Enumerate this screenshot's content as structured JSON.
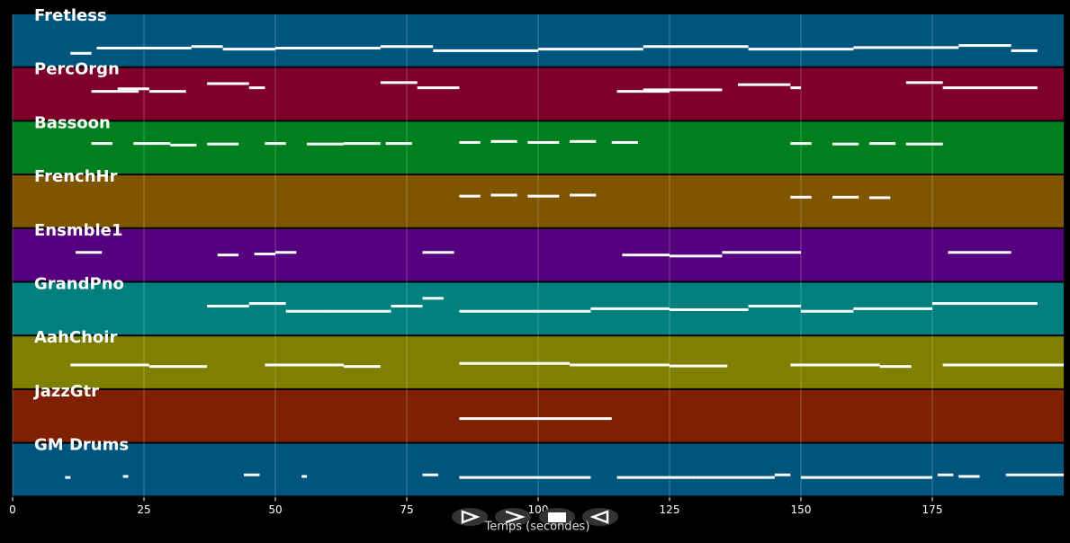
{
  "chart_data": {
    "type": "pianoroll",
    "xlabel": "Temps (secondes)",
    "xlim": [
      0,
      200
    ],
    "xticks": [
      0,
      25,
      50,
      75,
      100,
      125,
      150,
      175
    ],
    "grid": true,
    "tracks": [
      {
        "name": "Fretless",
        "color": "#00557f",
        "notes": [
          [
            11,
            15,
            0.25
          ],
          [
            16,
            34,
            0.35
          ],
          [
            34,
            40,
            0.38
          ],
          [
            40,
            50,
            0.33
          ],
          [
            50,
            70,
            0.35
          ],
          [
            70,
            80,
            0.38
          ],
          [
            80,
            100,
            0.3
          ],
          [
            100,
            120,
            0.33
          ],
          [
            120,
            140,
            0.38
          ],
          [
            140,
            160,
            0.33
          ],
          [
            160,
            180,
            0.36
          ],
          [
            180,
            190,
            0.4
          ],
          [
            190,
            195,
            0.3
          ]
        ]
      },
      {
        "name": "PercOrgn",
        "color": "#7f0028",
        "notes": [
          [
            15,
            24,
            0.55
          ],
          [
            20,
            26,
            0.6
          ],
          [
            26,
            33,
            0.55
          ],
          [
            37,
            45,
            0.7
          ],
          [
            45,
            48,
            0.62
          ],
          [
            70,
            77,
            0.72
          ],
          [
            77,
            85,
            0.62
          ],
          [
            115,
            125,
            0.55
          ],
          [
            120,
            135,
            0.58
          ],
          [
            138,
            148,
            0.68
          ],
          [
            148,
            150,
            0.62
          ],
          [
            170,
            177,
            0.72
          ],
          [
            177,
            195,
            0.62
          ]
        ]
      },
      {
        "name": "Bassoon",
        "color": "#007f1f",
        "notes": [
          [
            15,
            19,
            0.58
          ],
          [
            23,
            30,
            0.58
          ],
          [
            30,
            35,
            0.55
          ],
          [
            37,
            43,
            0.57
          ],
          [
            48,
            52,
            0.58
          ],
          [
            56,
            63,
            0.57
          ],
          [
            63,
            70,
            0.58
          ],
          [
            71,
            76,
            0.58
          ],
          [
            85,
            89,
            0.6
          ],
          [
            91,
            96,
            0.62
          ],
          [
            98,
            104,
            0.6
          ],
          [
            106,
            111,
            0.62
          ],
          [
            114,
            119,
            0.6
          ],
          [
            148,
            152,
            0.58
          ],
          [
            156,
            161,
            0.57
          ],
          [
            163,
            168,
            0.58
          ],
          [
            170,
            177,
            0.57
          ]
        ]
      },
      {
        "name": "FrenchHr",
        "color": "#7f5500",
        "notes": [
          [
            85,
            89,
            0.6
          ],
          [
            91,
            96,
            0.62
          ],
          [
            98,
            104,
            0.6
          ],
          [
            106,
            111,
            0.62
          ],
          [
            148,
            152,
            0.58
          ],
          [
            156,
            161,
            0.58
          ],
          [
            163,
            167,
            0.57
          ]
        ]
      },
      {
        "name": "Ensmble1",
        "color": "#55007f",
        "notes": [
          [
            12,
            17,
            0.55
          ],
          [
            39,
            43,
            0.5
          ],
          [
            46,
            50,
            0.52
          ],
          [
            50,
            54,
            0.55
          ],
          [
            78,
            84,
            0.55
          ],
          [
            116,
            125,
            0.5
          ],
          [
            125,
            135,
            0.48
          ],
          [
            135,
            150,
            0.55
          ],
          [
            178,
            190,
            0.55
          ]
        ]
      },
      {
        "name": "GrandPno",
        "color": "#007f7f",
        "notes": [
          [
            37,
            45,
            0.55
          ],
          [
            45,
            52,
            0.6
          ],
          [
            52,
            60,
            0.45
          ],
          [
            60,
            72,
            0.45
          ],
          [
            72,
            78,
            0.55
          ],
          [
            78,
            82,
            0.7
          ],
          [
            85,
            100,
            0.45
          ],
          [
            100,
            110,
            0.45
          ],
          [
            110,
            125,
            0.5
          ],
          [
            125,
            140,
            0.48
          ],
          [
            140,
            150,
            0.55
          ],
          [
            150,
            160,
            0.45
          ],
          [
            160,
            175,
            0.5
          ],
          [
            175,
            195,
            0.6
          ]
        ]
      },
      {
        "name": "AahChoir",
        "color": "#7f7f00",
        "notes": [
          [
            11,
            26,
            0.45
          ],
          [
            26,
            37,
            0.42
          ],
          [
            48,
            63,
            0.45
          ],
          [
            63,
            70,
            0.42
          ],
          [
            85,
            106,
            0.48
          ],
          [
            106,
            125,
            0.45
          ],
          [
            125,
            136,
            0.43
          ],
          [
            148,
            165,
            0.45
          ],
          [
            165,
            171,
            0.42
          ],
          [
            177,
            190,
            0.45
          ],
          [
            190,
            200,
            0.45
          ]
        ]
      },
      {
        "name": "JazzGtr",
        "color": "#7f2000",
        "notes": [
          [
            85,
            114,
            0.45
          ]
        ]
      },
      {
        "name": "GM Drums",
        "color": "#00557f",
        "notes": [
          [
            10,
            11,
            0.35
          ],
          [
            21,
            22,
            0.37
          ],
          [
            44,
            47,
            0.4
          ],
          [
            55,
            56,
            0.37
          ],
          [
            78,
            81,
            0.4
          ],
          [
            85,
            110,
            0.35
          ],
          [
            115,
            130,
            0.35
          ],
          [
            130,
            145,
            0.35
          ],
          [
            145,
            148,
            0.4
          ],
          [
            150,
            175,
            0.35
          ],
          [
            176,
            179,
            0.4
          ],
          [
            180,
            184,
            0.37
          ],
          [
            189,
            200,
            0.4
          ]
        ]
      }
    ]
  }
}
